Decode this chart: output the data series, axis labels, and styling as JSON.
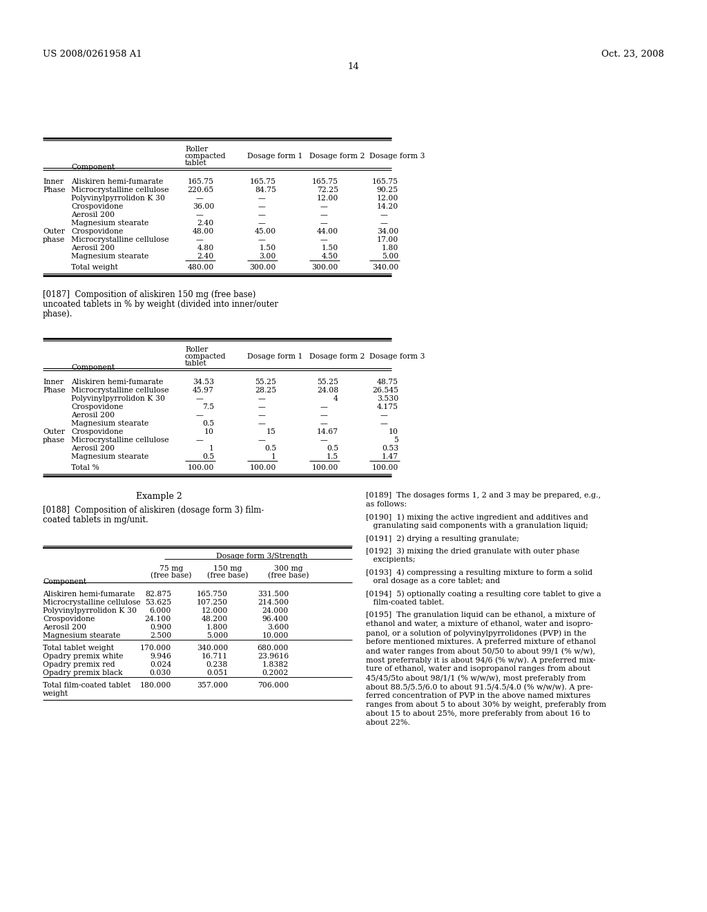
{
  "page_header_left": "US 2008/0261958 A1",
  "page_header_right": "Oct. 23, 2008",
  "page_number": "14",
  "bg_color": "#ffffff",
  "table1_rows": [
    [
      "Inner",
      "Aliskiren hemi-fumarate",
      "165.75",
      "165.75",
      "165.75",
      "165.75"
    ],
    [
      "Phase",
      "Microcrystalline cellulose",
      "220.65",
      "84.75",
      "72.25",
      "90.25"
    ],
    [
      "",
      "Polyvinylpyrrolidon K 30",
      "—",
      "—",
      "12.00",
      "12.00"
    ],
    [
      "",
      "Crospovidone",
      "36.00",
      "—",
      "—",
      "14.20"
    ],
    [
      "",
      "Aerosil 200",
      "—",
      "—",
      "—",
      "—"
    ],
    [
      "",
      "Magnesium stearate",
      "2.40",
      "—",
      "—",
      "—"
    ],
    [
      "Outer",
      "Crospovidone",
      "48.00",
      "45.00",
      "44.00",
      "34.00"
    ],
    [
      "phase",
      "Microcrystalline cellulose",
      "—",
      "—",
      "—",
      "17.00"
    ],
    [
      "",
      "Aerosil 200",
      "4.80",
      "1.50",
      "1.50",
      "1.80"
    ],
    [
      "",
      "Magnesium stearate",
      "2.40",
      "3.00",
      "4.50",
      "5.00"
    ],
    [
      "total",
      "Total weight",
      "480.00",
      "300.00",
      "300.00",
      "340.00"
    ]
  ],
  "para_0187_lines": [
    "[0187]  Composition of aliskiren 150 mg (free base)",
    "uncoated tablets in % by weight (divided into inner/outer",
    "phase)."
  ],
  "table2_rows": [
    [
      "Inner",
      "Aliskiren hemi-fumarate",
      "34.53",
      "55.25",
      "55.25",
      "48.75"
    ],
    [
      "Phase",
      "Microcrystalline cellulose",
      "45.97",
      "28.25",
      "24.08",
      "26.545"
    ],
    [
      "",
      "Polyvinylpyrrolidon K 30",
      "—",
      "—",
      "4",
      "3.530"
    ],
    [
      "",
      "Crospovidone",
      "7.5",
      "—",
      "—",
      "4.175"
    ],
    [
      "",
      "Aerosil 200",
      "—",
      "—",
      "—",
      "—"
    ],
    [
      "",
      "Magnesium stearate",
      "0.5",
      "—",
      "—",
      "—"
    ],
    [
      "Outer",
      "Crospovidone",
      "10",
      "15",
      "14.67",
      "10"
    ],
    [
      "phase",
      "Microcrystalline cellulose",
      "—",
      "—",
      "—",
      "5"
    ],
    [
      "",
      "Aerosil 200",
      "1",
      "0.5",
      "0.5",
      "0.53"
    ],
    [
      "",
      "Magnesium stearate",
      "0.5",
      "1",
      "1.5",
      "1.47"
    ],
    [
      "total",
      "Total %",
      "100.00",
      "100.00",
      "100.00",
      "100.00"
    ]
  ],
  "example2_heading": "Example 2",
  "para_0188_lines": [
    "[0188]  Composition of aliskiren (dosage form 3) film-",
    "coated tablets in mg/unit."
  ],
  "table3_header_main": "Dosage form 3/Strength",
  "table3_rows": [
    [
      "Aliskiren hemi-fumarate",
      "82.875",
      "165.750",
      "331.500"
    ],
    [
      "Microcrystalline cellulose",
      "53.625",
      "107.250",
      "214.500"
    ],
    [
      "Polyvinylpyrrolidon K 30",
      "6.000",
      "12.000",
      "24.000"
    ],
    [
      "Crospovidone",
      "24.100",
      "48.200",
      "96.400"
    ],
    [
      "Aerosil 200",
      "0.900",
      "1.800",
      "3.600"
    ],
    [
      "Magnesium stearate",
      "2.500",
      "5.000",
      "10.000"
    ],
    [
      "blank",
      "",
      "",
      ""
    ],
    [
      "Total tablet weight",
      "170.000",
      "340.000",
      "680.000"
    ],
    [
      "Opadry premix white",
      "9.946",
      "16.711",
      "23.9616"
    ],
    [
      "Opadry premix red",
      "0.024",
      "0.238",
      "1.8382"
    ],
    [
      "Opadry premix black",
      "0.030",
      "0.051",
      "0.2002"
    ],
    [
      "blank",
      "",
      "",
      ""
    ],
    [
      "Total film-coated tablet",
      "180.000",
      "357.000",
      "706.000"
    ],
    [
      "weight",
      "",
      "",
      ""
    ]
  ],
  "para_0189_lines": [
    "[0189]  The dosages forms 1, 2 and 3 may be prepared, e.g.,",
    "as follows:"
  ],
  "para_0190_lines": [
    "[0190]  1) mixing the active ingredient and additives and",
    "   granulating said components with a granulation liquid;"
  ],
  "para_0191_lines": [
    "[0191]  2) drying a resulting granulate;"
  ],
  "para_0192_lines": [
    "[0192]  3) mixing the dried granulate with outer phase",
    "   excipients;"
  ],
  "para_0193_lines": [
    "[0193]  4) compressing a resulting mixture to form a solid",
    "   oral dosage as a core tablet; and"
  ],
  "para_0194_lines": [
    "[0194]  5) optionally coating a resulting core tablet to give a",
    "   film-coated tablet."
  ],
  "para_0195_lines": [
    "[0195]  The granulation liquid can be ethanol, a mixture of",
    "ethanol and water, a mixture of ethanol, water and isopro-",
    "panol, or a solution of polyvinylpyrrolidones (PVP) in the",
    "before mentioned mixtures. A preferred mixture of ethanol",
    "and water ranges from about 50/50 to about 99/1 (% w/w),",
    "most preferrably it is about 94/6 (% w/w). A preferred mix-",
    "ture of ethanol, water and isopropanol ranges from about",
    "45/45/5to about 98/1/1 (% w/w/w), most preferably from",
    "about 88.5/5.5/6.0 to about 91.5/4.5/4.0 (% w/w/w). A pre-",
    "ferred concentration of PVP in the above named mixtures",
    "ranges from about 5 to about 30% by weight, preferably from",
    "about 15 to about 25%, more preferably from about 16 to",
    "about 22%."
  ]
}
